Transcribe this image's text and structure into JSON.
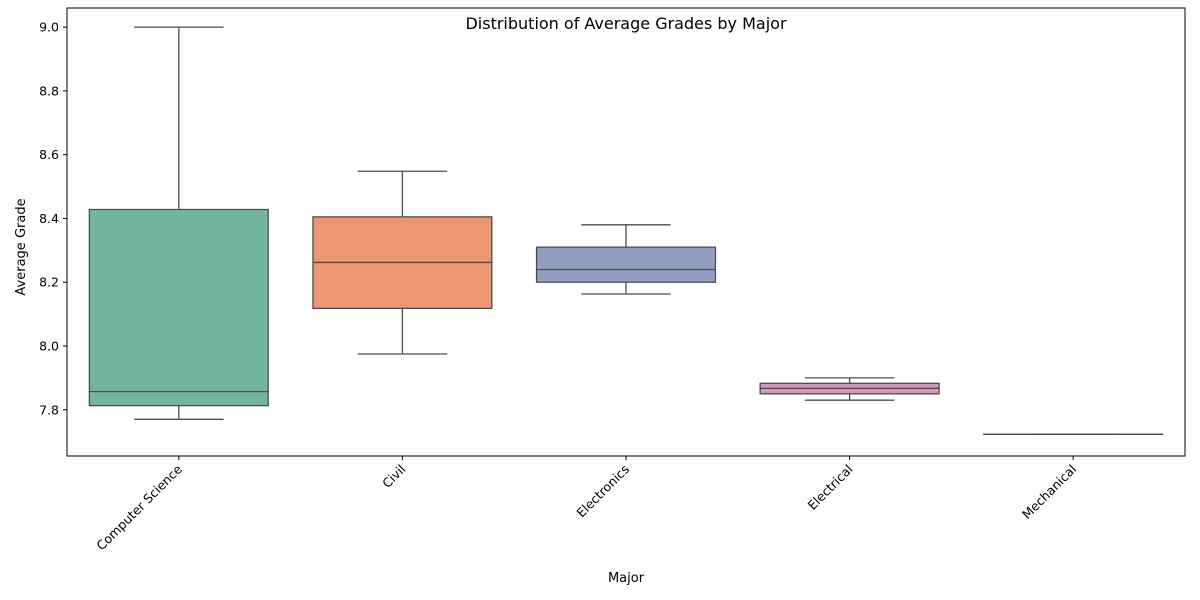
{
  "chart_data": {
    "type": "box",
    "title": "Distribution of Average Grades by Major",
    "xlabel": "Major",
    "ylabel": "Average Grade",
    "ylim": [
      7.655,
      9.06
    ],
    "yticks": [
      7.8,
      8.0,
      8.2,
      8.4,
      8.6,
      8.8,
      9.0
    ],
    "grid": false,
    "legend": "none",
    "xtick_rotation": 45,
    "colors": {
      "median_and_whisker": "#4d4d4d",
      "axes": "#000000"
    },
    "categories": [
      "Computer Science",
      "Civil",
      "Electronics",
      "Electrical",
      "Mechanical"
    ],
    "boxes": [
      {
        "category": "Computer Science",
        "color": "#73b6a0",
        "whisker_low": 7.77,
        "q1": 7.813,
        "median": 7.857,
        "q3": 8.428,
        "whisker_high": 9.0
      },
      {
        "category": "Civil",
        "color": "#ec9772",
        "whisker_low": 7.975,
        "q1": 8.118,
        "median": 8.262,
        "q3": 8.405,
        "whisker_high": 8.548
      },
      {
        "category": "Electronics",
        "color": "#929fc5",
        "whisker_low": 8.163,
        "q1": 8.2,
        "median": 8.24,
        "q3": 8.31,
        "whisker_high": 8.38
      },
      {
        "category": "Electrical",
        "color": "#d796c2",
        "whisker_low": 7.83,
        "q1": 7.85,
        "median": 7.867,
        "q3": 7.883,
        "whisker_high": 7.9
      },
      {
        "category": "Mechanical",
        "color": "#a5d474",
        "whisker_low": 7.723,
        "q1": 7.723,
        "median": 7.723,
        "q3": 7.723,
        "whisker_high": 7.723
      }
    ]
  }
}
